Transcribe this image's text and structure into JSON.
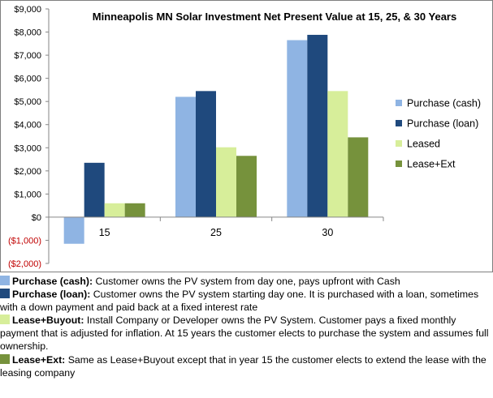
{
  "chart_data": {
    "type": "bar",
    "title": "Minneapolis MN Solar Investment Net Present Value at 15, 25, & 30 Years",
    "xlabel": "",
    "ylabel": "",
    "categories": [
      "15",
      "25",
      "30"
    ],
    "series": [
      {
        "name": "Purchase (cash)",
        "values": [
          -1150,
          5200,
          7650
        ],
        "color": "#8fb4e3"
      },
      {
        "name": "Purchase (loan)",
        "values": [
          2350,
          5450,
          7880
        ],
        "color": "#1f497d"
      },
      {
        "name": "Leased",
        "values": [
          600,
          3020,
          5450
        ],
        "color": "#d7ee9a"
      },
      {
        "name": "Lease+Ext",
        "values": [
          600,
          2650,
          3450
        ],
        "color": "#76923c"
      }
    ],
    "ylim": [
      -2000,
      9000
    ],
    "yticks": [
      -2000,
      -1000,
      0,
      1000,
      2000,
      3000,
      4000,
      5000,
      6000,
      7000,
      8000,
      9000
    ],
    "ytick_labels": [
      "($2,000)",
      "($1,000)",
      "$0",
      "$1,000",
      "$2,000",
      "$3,000",
      "$4,000",
      "$5,000",
      "$6,000",
      "$7,000",
      "$8,000",
      "$9,000"
    ],
    "negative_tick_color": "#c00000",
    "grid": false,
    "legend_position": "right"
  },
  "notes": [
    {
      "swatch": "#8fb4e3",
      "title": "Purchase (cash):",
      "text": " Customer owns the PV system from day one, pays upfront with Cash"
    },
    {
      "swatch": "#1f497d",
      "title": "Purchase (loan):",
      "text": " Customer owns the PV system starting day one. It is purchased with a loan, sometimes with a down payment and paid back at a fixed interest rate"
    },
    {
      "swatch": "#d7ee9a",
      "title": "Lease+Buyout:",
      "text": " Install Company or Developer owns the PV System. Customer pays a fixed monthly payment that is adjusted for inflation. At 15 years the customer elects to purchase the system and assumes full ownership."
    },
    {
      "swatch": "#76923c",
      "title": "Lease+Ext:",
      "text": " Same as Lease+Buyout except that in year 15 the customer elects to extend the lease with the leasing company"
    }
  ]
}
